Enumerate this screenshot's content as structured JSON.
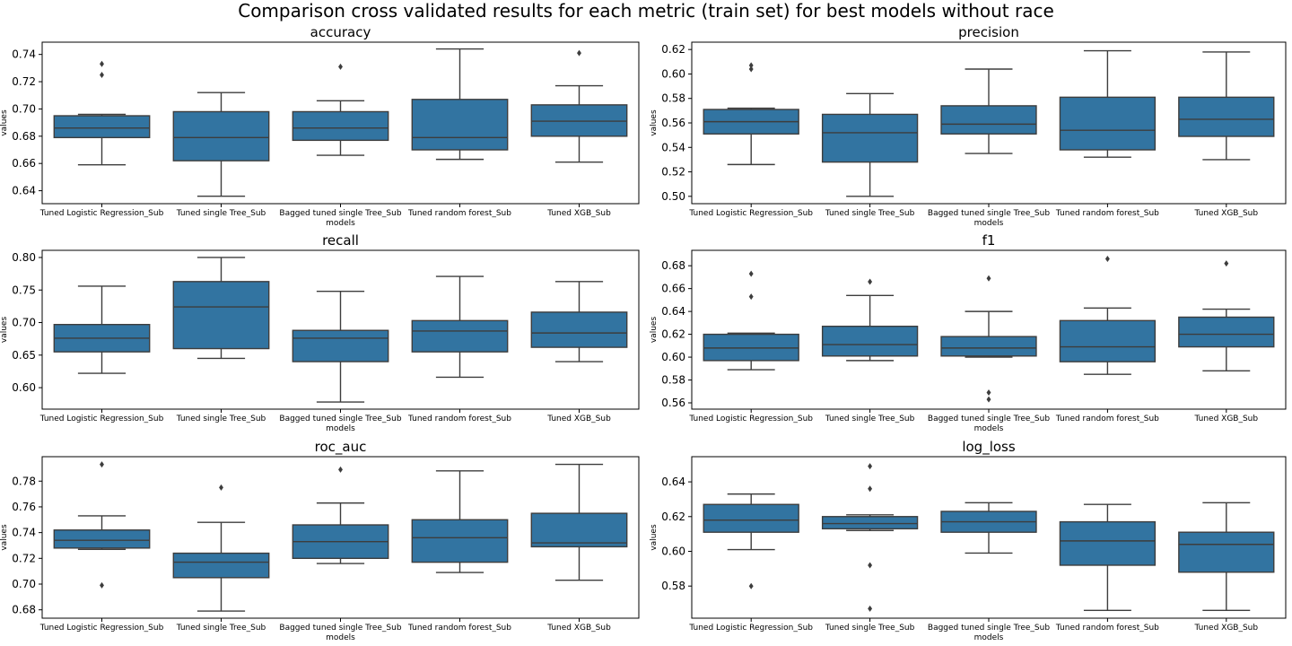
{
  "figure_title": "Comparison cross validated results for each metric (train set) for best models without race",
  "colors": {
    "box_fill": "#3274a1",
    "line": "#3d3d3d",
    "axis": "#000000",
    "background": "#ffffff"
  },
  "chart_data": [
    {
      "type": "box",
      "title": "accuracy",
      "xlabel": "models",
      "ylabel": "values",
      "categories": [
        "Tuned Logistic Regression_Sub",
        "Tuned single Tree_Sub",
        "Bagged tuned single Tree_Sub",
        "Tuned random forest_Sub",
        "Tuned XGB_Sub"
      ],
      "ylim": [
        0.6305,
        0.749
      ],
      "yticks": [
        0.64,
        0.66,
        0.68,
        0.7,
        0.72,
        0.74
      ],
      "ytick_labels": [
        "0.64",
        "0.66",
        "0.68",
        "0.70",
        "0.72",
        "0.74"
      ],
      "boxes": [
        {
          "whislo": 0.659,
          "q1": 0.679,
          "med": 0.686,
          "q3": 0.695,
          "whishi": 0.696,
          "fliers": [
            0.725,
            0.733
          ]
        },
        {
          "whislo": 0.636,
          "q1": 0.662,
          "med": 0.679,
          "q3": 0.698,
          "whishi": 0.712,
          "fliers": []
        },
        {
          "whislo": 0.666,
          "q1": 0.677,
          "med": 0.686,
          "q3": 0.698,
          "whishi": 0.706,
          "fliers": [
            0.731
          ]
        },
        {
          "whislo": 0.663,
          "q1": 0.67,
          "med": 0.679,
          "q3": 0.707,
          "whishi": 0.744,
          "fliers": []
        },
        {
          "whislo": 0.661,
          "q1": 0.68,
          "med": 0.691,
          "q3": 0.703,
          "whishi": 0.717,
          "fliers": [
            0.741
          ]
        }
      ]
    },
    {
      "type": "box",
      "title": "precision",
      "xlabel": "models",
      "ylabel": "values",
      "categories": [
        "Tuned Logistic Regression_Sub",
        "Tuned single Tree_Sub",
        "Bagged tuned single Tree_Sub",
        "Tuned random forest_Sub",
        "Tuned XGB_Sub"
      ],
      "ylim": [
        0.494,
        0.626
      ],
      "yticks": [
        0.5,
        0.52,
        0.54,
        0.56,
        0.58,
        0.6,
        0.62
      ],
      "ytick_labels": [
        "0.50",
        "0.52",
        "0.54",
        "0.56",
        "0.58",
        "0.60",
        "0.62"
      ],
      "boxes": [
        {
          "whislo": 0.526,
          "q1": 0.551,
          "med": 0.561,
          "q3": 0.571,
          "whishi": 0.572,
          "fliers": [
            0.604,
            0.607
          ]
        },
        {
          "whislo": 0.5,
          "q1": 0.528,
          "med": 0.552,
          "q3": 0.567,
          "whishi": 0.584,
          "fliers": []
        },
        {
          "whislo": 0.535,
          "q1": 0.551,
          "med": 0.559,
          "q3": 0.574,
          "whishi": 0.604,
          "fliers": []
        },
        {
          "whislo": 0.532,
          "q1": 0.538,
          "med": 0.554,
          "q3": 0.581,
          "whishi": 0.619,
          "fliers": []
        },
        {
          "whislo": 0.53,
          "q1": 0.549,
          "med": 0.563,
          "q3": 0.581,
          "whishi": 0.618,
          "fliers": []
        }
      ]
    },
    {
      "type": "box",
      "title": "recall",
      "xlabel": "models",
      "ylabel": "values",
      "categories": [
        "Tuned Logistic Regression_Sub",
        "Tuned single Tree_Sub",
        "Bagged tuned single Tree_Sub",
        "Tuned random forest_Sub",
        "Tuned XGB_Sub"
      ],
      "ylim": [
        0.567,
        0.811
      ],
      "yticks": [
        0.6,
        0.65,
        0.7,
        0.75,
        0.8
      ],
      "ytick_labels": [
        "0.60",
        "0.65",
        "0.70",
        "0.75",
        "0.80"
      ],
      "boxes": [
        {
          "whislo": 0.622,
          "q1": 0.655,
          "med": 0.676,
          "q3": 0.697,
          "whishi": 0.756,
          "fliers": []
        },
        {
          "whislo": 0.645,
          "q1": 0.66,
          "med": 0.724,
          "q3": 0.763,
          "whishi": 0.8,
          "fliers": []
        },
        {
          "whislo": 0.578,
          "q1": 0.64,
          "med": 0.676,
          "q3": 0.688,
          "whishi": 0.748,
          "fliers": []
        },
        {
          "whislo": 0.616,
          "q1": 0.655,
          "med": 0.687,
          "q3": 0.703,
          "whishi": 0.771,
          "fliers": []
        },
        {
          "whislo": 0.64,
          "q1": 0.662,
          "med": 0.684,
          "q3": 0.716,
          "whishi": 0.763,
          "fliers": []
        }
      ]
    },
    {
      "type": "box",
      "title": "f1",
      "xlabel": "models",
      "ylabel": "values",
      "categories": [
        "Tuned Logistic Regression_Sub",
        "Tuned single Tree_Sub",
        "Bagged tuned single Tree_Sub",
        "Tuned random forest_Sub",
        "Tuned XGB_Sub"
      ],
      "ylim": [
        0.5545,
        0.6935
      ],
      "yticks": [
        0.56,
        0.58,
        0.6,
        0.62,
        0.64,
        0.66,
        0.68
      ],
      "ytick_labels": [
        "0.56",
        "0.58",
        "0.60",
        "0.62",
        "0.64",
        "0.66",
        "0.68"
      ],
      "boxes": [
        {
          "whislo": 0.589,
          "q1": 0.597,
          "med": 0.608,
          "q3": 0.62,
          "whishi": 0.621,
          "fliers": [
            0.653,
            0.673
          ]
        },
        {
          "whislo": 0.597,
          "q1": 0.601,
          "med": 0.611,
          "q3": 0.627,
          "whishi": 0.654,
          "fliers": [
            0.666
          ]
        },
        {
          "whislo": 0.6,
          "q1": 0.601,
          "med": 0.608,
          "q3": 0.618,
          "whishi": 0.64,
          "fliers": [
            0.563,
            0.569,
            0.669
          ]
        },
        {
          "whislo": 0.585,
          "q1": 0.596,
          "med": 0.609,
          "q3": 0.632,
          "whishi": 0.643,
          "fliers": [
            0.686
          ]
        },
        {
          "whislo": 0.588,
          "q1": 0.609,
          "med": 0.62,
          "q3": 0.635,
          "whishi": 0.642,
          "fliers": [
            0.682
          ]
        }
      ]
    },
    {
      "type": "box",
      "title": "roc_auc",
      "xlabel": "models",
      "ylabel": "values",
      "categories": [
        "Tuned Logistic Regression_Sub",
        "Tuned single Tree_Sub",
        "Bagged tuned single Tree_Sub",
        "Tuned random forest_Sub",
        "Tuned XGB_Sub"
      ],
      "ylim": [
        0.6735,
        0.799
      ],
      "yticks": [
        0.68,
        0.7,
        0.72,
        0.74,
        0.76,
        0.78
      ],
      "ytick_labels": [
        "0.68",
        "0.70",
        "0.72",
        "0.74",
        "0.76",
        "0.78"
      ],
      "boxes": [
        {
          "whislo": 0.727,
          "q1": 0.728,
          "med": 0.734,
          "q3": 0.742,
          "whishi": 0.753,
          "fliers": [
            0.699,
            0.793
          ]
        },
        {
          "whislo": 0.679,
          "q1": 0.705,
          "med": 0.717,
          "q3": 0.724,
          "whishi": 0.748,
          "fliers": [
            0.775
          ]
        },
        {
          "whislo": 0.716,
          "q1": 0.72,
          "med": 0.733,
          "q3": 0.746,
          "whishi": 0.763,
          "fliers": [
            0.789
          ]
        },
        {
          "whislo": 0.709,
          "q1": 0.717,
          "med": 0.736,
          "q3": 0.75,
          "whishi": 0.788,
          "fliers": []
        },
        {
          "whislo": 0.703,
          "q1": 0.729,
          "med": 0.732,
          "q3": 0.755,
          "whishi": 0.793,
          "fliers": []
        }
      ]
    },
    {
      "type": "box",
      "title": "log_loss",
      "xlabel": "models",
      "ylabel": "values",
      "categories": [
        "Tuned Logistic Regression_Sub",
        "Tuned single Tree_Sub",
        "Bagged tuned single Tree_Sub",
        "Tuned random forest_Sub",
        "Tuned XGB_Sub"
      ],
      "ylim": [
        0.5615,
        0.6545
      ],
      "yticks": [
        0.58,
        0.6,
        0.62,
        0.64
      ],
      "ytick_labels": [
        "0.58",
        "0.60",
        "0.62",
        "0.64"
      ],
      "boxes": [
        {
          "whislo": 0.601,
          "q1": 0.611,
          "med": 0.618,
          "q3": 0.627,
          "whishi": 0.633,
          "fliers": [
            0.58
          ]
        },
        {
          "whislo": 0.612,
          "q1": 0.613,
          "med": 0.616,
          "q3": 0.62,
          "whishi": 0.621,
          "fliers": [
            0.567,
            0.592,
            0.636,
            0.649
          ]
        },
        {
          "whislo": 0.599,
          "q1": 0.611,
          "med": 0.617,
          "q3": 0.623,
          "whishi": 0.628,
          "fliers": []
        },
        {
          "whislo": 0.566,
          "q1": 0.592,
          "med": 0.606,
          "q3": 0.617,
          "whishi": 0.627,
          "fliers": []
        },
        {
          "whislo": 0.566,
          "q1": 0.588,
          "med": 0.604,
          "q3": 0.611,
          "whishi": 0.628,
          "fliers": []
        }
      ]
    }
  ]
}
